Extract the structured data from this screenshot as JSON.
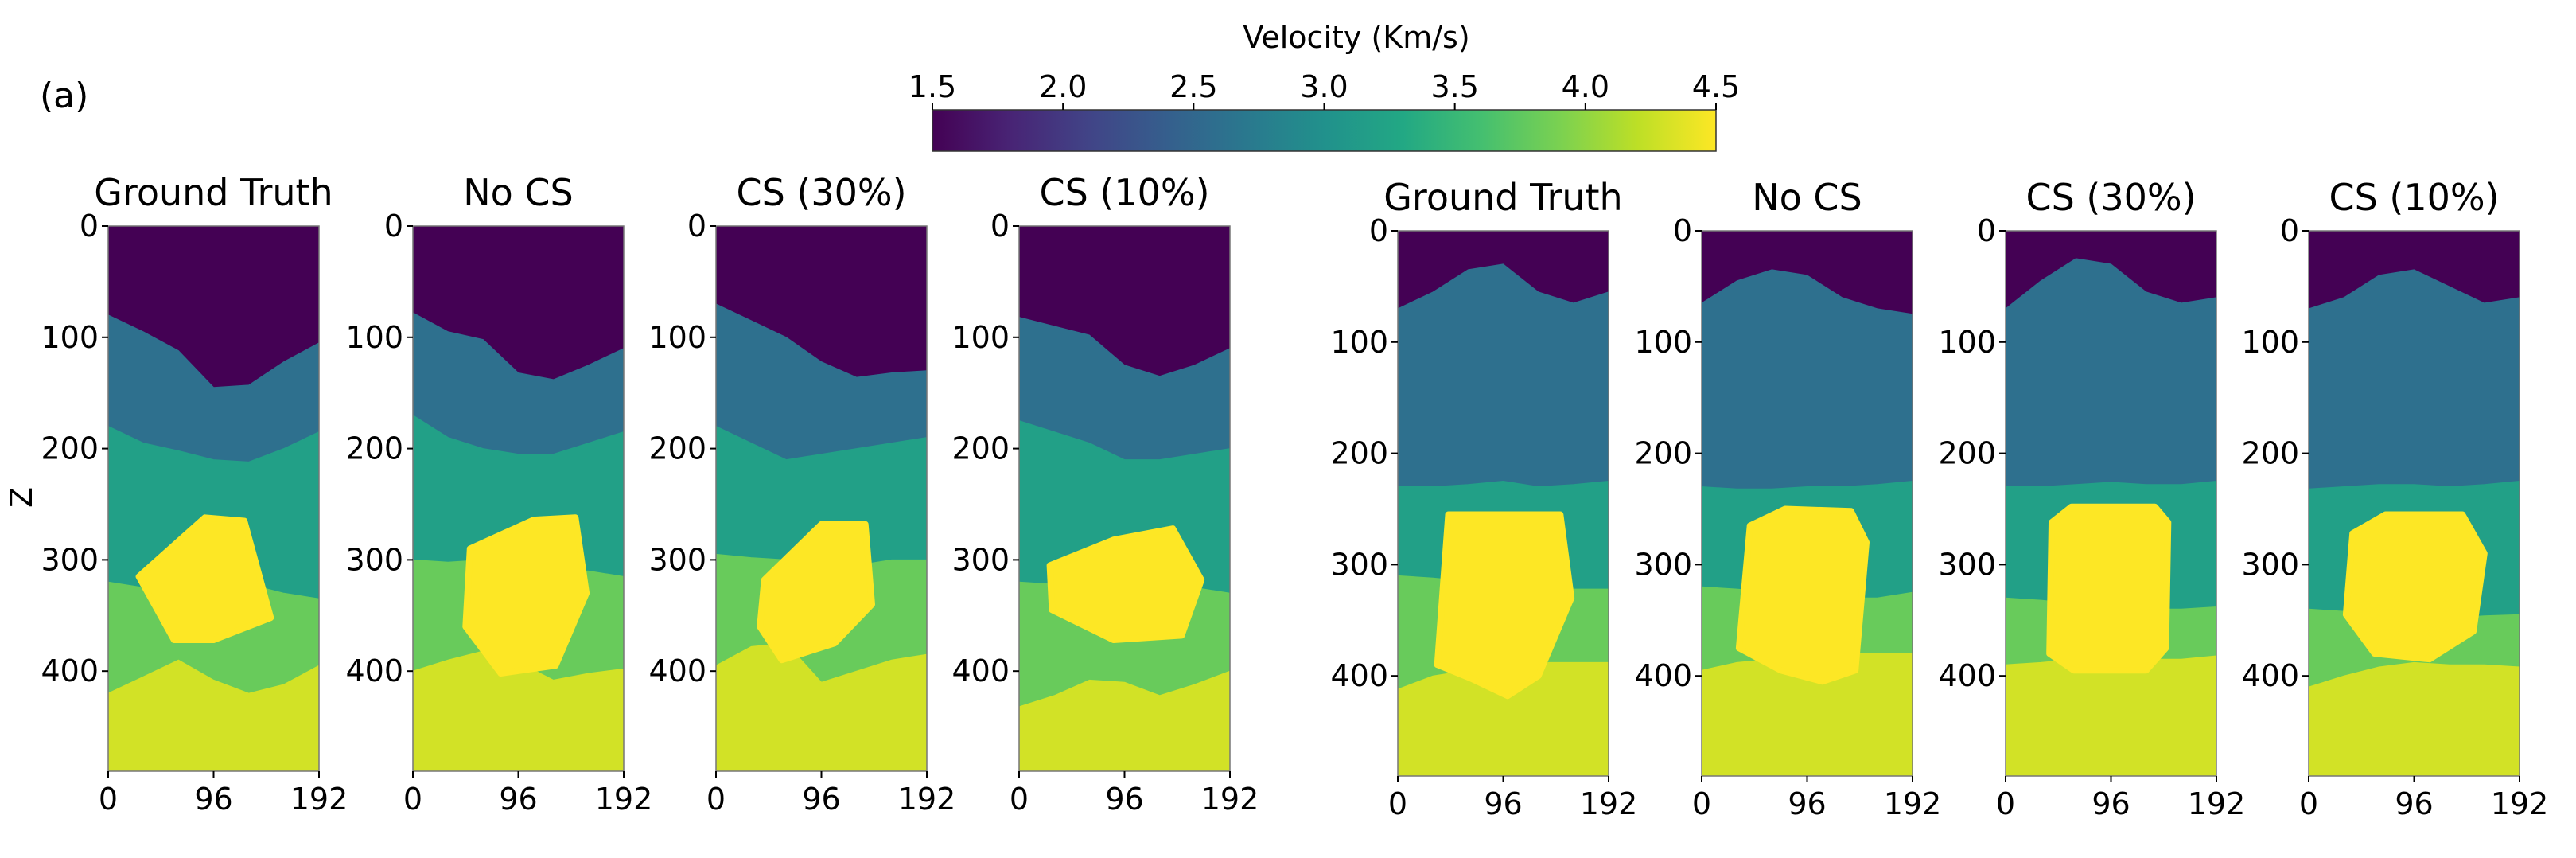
{
  "chart_data": {
    "type": "heatmap",
    "panel_label": "(a)",
    "ylabel": "Z",
    "colorbar": {
      "title": "Velocity (Km/s)",
      "range": [
        1.5,
        4.5
      ],
      "ticks": [
        "1.5",
        "2.0",
        "2.5",
        "3.0",
        "3.5",
        "4.0",
        "4.5"
      ],
      "colormap": "viridis"
    },
    "x_ticks": [
      "0",
      "96",
      "192"
    ],
    "y_ticks": [
      "0",
      "100",
      "200",
      "300",
      "400"
    ],
    "x_range": [
      0,
      192
    ],
    "z_range": [
      0,
      490
    ],
    "panels": [
      {
        "title": "Ground Truth",
        "layers": [
          {
            "velocity": 1.5,
            "top": [
              0,
              0,
              0,
              0,
              0,
              0,
              0
            ]
          },
          {
            "velocity": 2.6,
            "top": [
              80,
              95,
              112,
              145,
              143,
              122,
              105
            ]
          },
          {
            "velocity": 3.2,
            "top": [
              180,
              195,
              202,
              210,
              212,
              200,
              185
            ]
          },
          {
            "velocity": 3.8,
            "top": [
              320,
              325,
              325,
              325,
              322,
              330,
              335
            ]
          },
          {
            "velocity": 4.3,
            "top": [
              420,
              405,
              390,
              408,
              420,
              412,
              395
            ]
          }
        ],
        "body": {
          "velocity": 4.5,
          "points": [
            [
              28,
              315
            ],
            [
              88,
              262
            ],
            [
              124,
              265
            ],
            [
              148,
              352
            ],
            [
              96,
              372
            ],
            [
              60,
              372
            ]
          ]
        }
      },
      {
        "title": "No CS",
        "layers": [
          {
            "velocity": 1.5,
            "top": [
              0,
              0,
              0,
              0,
              0,
              0,
              0
            ]
          },
          {
            "velocity": 2.6,
            "top": [
              78,
              95,
              102,
              132,
              138,
              125,
              110
            ]
          },
          {
            "velocity": 3.2,
            "top": [
              170,
              190,
              200,
              205,
              205,
              195,
              185
            ]
          },
          {
            "velocity": 3.8,
            "top": [
              300,
              302,
              300,
              305,
              308,
              310,
              315
            ]
          },
          {
            "velocity": 4.3,
            "top": [
              400,
              390,
              382,
              392,
              408,
              402,
              398
            ]
          }
        ],
        "body": {
          "velocity": 4.5,
          "points": [
            [
              52,
              290
            ],
            [
              110,
              264
            ],
            [
              148,
              262
            ],
            [
              158,
              330
            ],
            [
              130,
              395
            ],
            [
              80,
              402
            ],
            [
              48,
              360
            ]
          ]
        }
      },
      {
        "title": "CS (30%)",
        "layers": [
          {
            "velocity": 1.5,
            "top": [
              0,
              0,
              0,
              0,
              0,
              0,
              0
            ]
          },
          {
            "velocity": 2.6,
            "top": [
              70,
              85,
              100,
              122,
              136,
              132,
              130
            ]
          },
          {
            "velocity": 3.2,
            "top": [
              180,
              195,
              210,
              205,
              200,
              195,
              190
            ]
          },
          {
            "velocity": 3.8,
            "top": [
              295,
              298,
              300,
              305,
              305,
              300,
              300
            ]
          },
          {
            "velocity": 4.3,
            "top": [
              395,
              378,
              375,
              410,
              400,
              390,
              385
            ]
          }
        ],
        "body": {
          "velocity": 4.5,
          "points": [
            [
              44,
              318
            ],
            [
              96,
              268
            ],
            [
              136,
              268
            ],
            [
              142,
              340
            ],
            [
              108,
              375
            ],
            [
              60,
              390
            ],
            [
              40,
              360
            ]
          ]
        }
      },
      {
        "title": "CS (10%)",
        "layers": [
          {
            "velocity": 1.5,
            "top": [
              0,
              0,
              0,
              0,
              0,
              0,
              0
            ]
          },
          {
            "velocity": 2.6,
            "top": [
              82,
              90,
              98,
              125,
              135,
              125,
              110
            ]
          },
          {
            "velocity": 3.2,
            "top": [
              175,
              185,
              195,
              210,
              210,
              205,
              200
            ]
          },
          {
            "velocity": 3.8,
            "top": [
              320,
              322,
              320,
              330,
              328,
              325,
              330
            ]
          },
          {
            "velocity": 4.3,
            "top": [
              432,
              422,
              408,
              410,
              422,
              412,
              400
            ]
          }
        ],
        "body": {
          "velocity": 4.5,
          "points": [
            [
              28,
              305
            ],
            [
              86,
              282
            ],
            [
              140,
              272
            ],
            [
              166,
              318
            ],
            [
              148,
              368
            ],
            [
              86,
              372
            ],
            [
              30,
              345
            ]
          ]
        }
      },
      {
        "title": "Ground Truth",
        "layers": [
          {
            "velocity": 1.5,
            "top": [
              0,
              0,
              0,
              0,
              0,
              0,
              0
            ]
          },
          {
            "velocity": 2.6,
            "top": [
              70,
              55,
              35,
              30,
              55,
              65,
              55
            ]
          },
          {
            "velocity": 3.2,
            "top": [
              230,
              230,
              228,
              225,
              230,
              228,
              225
            ]
          },
          {
            "velocity": 3.8,
            "top": [
              310,
              312,
              315,
              318,
              322,
              322,
              322
            ]
          },
          {
            "velocity": 4.3,
            "top": [
              412,
              400,
              395,
              390,
              388,
              388,
              388
            ]
          }
        ],
        "body": {
          "velocity": 4.5,
          "points": [
            [
              46,
              255
            ],
            [
              148,
              255
            ],
            [
              158,
              330
            ],
            [
              128,
              400
            ],
            [
              100,
              418
            ],
            [
              66,
              402
            ],
            [
              36,
              390
            ]
          ]
        }
      },
      {
        "title": "No CS",
        "layers": [
          {
            "velocity": 1.5,
            "top": [
              0,
              0,
              0,
              0,
              0,
              0,
              0
            ]
          },
          {
            "velocity": 2.6,
            "top": [
              65,
              45,
              35,
              40,
              60,
              70,
              75
            ]
          },
          {
            "velocity": 3.2,
            "top": [
              230,
              232,
              232,
              230,
              230,
              228,
              225
            ]
          },
          {
            "velocity": 3.8,
            "top": [
              320,
              322,
              325,
              330,
              330,
              330,
              325
            ]
          },
          {
            "velocity": 4.3,
            "top": [
              395,
              388,
              385,
              380,
              380,
              380,
              380
            ]
          }
        ],
        "body": {
          "velocity": 4.5,
          "points": [
            [
              44,
              265
            ],
            [
              76,
              250
            ],
            [
              136,
              252
            ],
            [
              150,
              280
            ],
            [
              140,
              395
            ],
            [
              110,
              405
            ],
            [
              72,
              395
            ],
            [
              34,
              375
            ]
          ]
        }
      },
      {
        "title": "CS (30%)",
        "layers": [
          {
            "velocity": 1.5,
            "top": [
              0,
              0,
              0,
              0,
              0,
              0,
              0
            ]
          },
          {
            "velocity": 2.6,
            "top": [
              70,
              45,
              25,
              30,
              55,
              65,
              60
            ]
          },
          {
            "velocity": 3.2,
            "top": [
              230,
              230,
              228,
              226,
              228,
              228,
              225
            ]
          },
          {
            "velocity": 3.8,
            "top": [
              330,
              332,
              335,
              338,
              340,
              340,
              338
            ]
          },
          {
            "velocity": 4.3,
            "top": [
              390,
              388,
              385,
              385,
              385,
              385,
              382
            ]
          }
        ],
        "body": {
          "velocity": 4.5,
          "points": [
            [
              42,
              262
            ],
            [
              60,
              248
            ],
            [
              136,
              248
            ],
            [
              148,
              262
            ],
            [
              146,
              375
            ],
            [
              128,
              395
            ],
            [
              62,
              395
            ],
            [
              40,
              380
            ]
          ]
        }
      },
      {
        "title": "CS (10%)",
        "layers": [
          {
            "velocity": 1.5,
            "top": [
              0,
              0,
              0,
              0,
              0,
              0,
              0
            ]
          },
          {
            "velocity": 2.6,
            "top": [
              70,
              60,
              40,
              35,
              50,
              65,
              60
            ]
          },
          {
            "velocity": 3.2,
            "top": [
              232,
              230,
              228,
              228,
              230,
              228,
              225
            ]
          },
          {
            "velocity": 3.8,
            "top": [
              340,
              342,
              345,
              345,
              348,
              346,
              345
            ]
          },
          {
            "velocity": 4.3,
            "top": [
              410,
              400,
              392,
              388,
              390,
              390,
              392
            ]
          }
        ],
        "body": {
          "velocity": 4.5,
          "points": [
            [
              40,
              272
            ],
            [
              70,
              255
            ],
            [
              140,
              255
            ],
            [
              160,
              290
            ],
            [
              150,
              360
            ],
            [
              110,
              385
            ],
            [
              60,
              380
            ],
            [
              34,
              345
            ]
          ]
        }
      }
    ]
  }
}
